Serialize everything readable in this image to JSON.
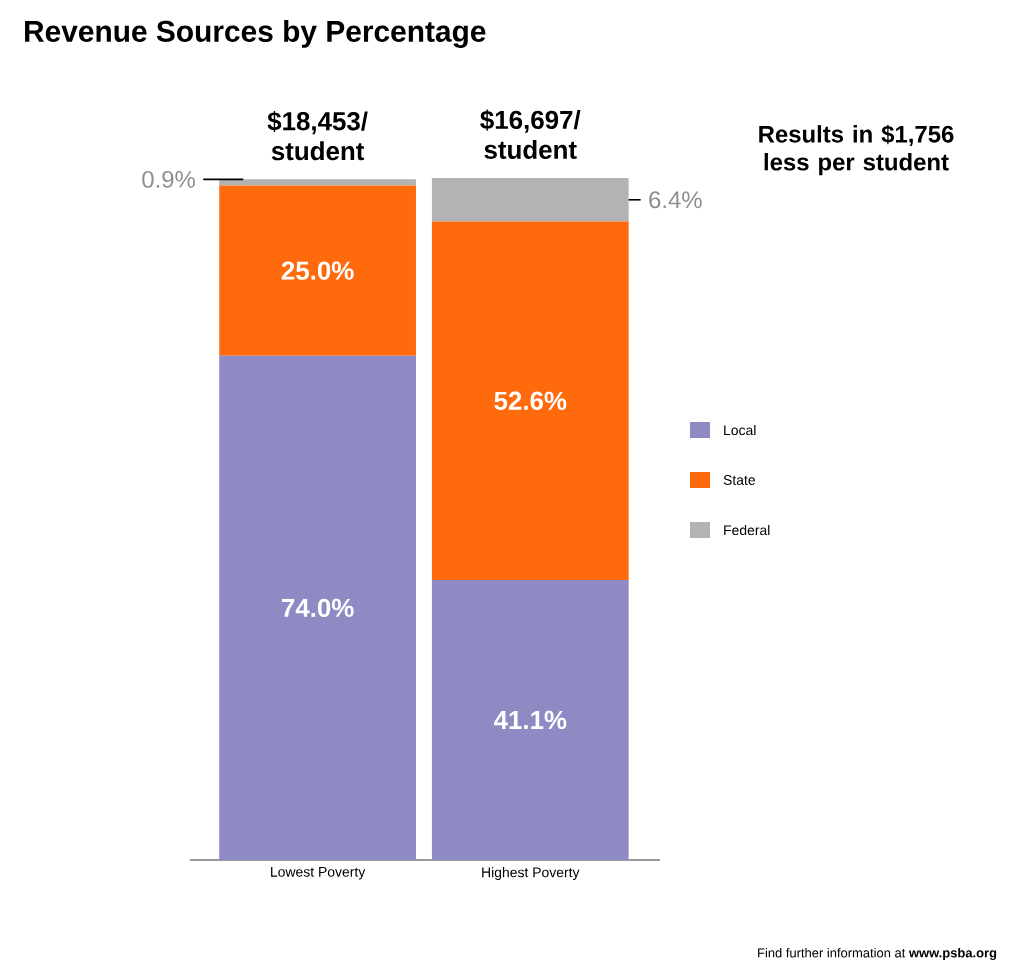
{
  "chart_data": {
    "type": "bar",
    "stacked": true,
    "title": "Revenue Sources by Percentage",
    "categories": [
      "Lowest Poverty",
      "Highest Poverty"
    ],
    "series": [
      {
        "name": "Local",
        "color": "#8e8bc4",
        "values": [
          74.0,
          41.1
        ],
        "value_labels": [
          "74.0%",
          "41.1%"
        ]
      },
      {
        "name": "State",
        "color": "#ff6a0d",
        "values": [
          25.0,
          52.6
        ],
        "value_labels": [
          "25.0%",
          "52.6%"
        ]
      },
      {
        "name": "Federal",
        "color": "#b3b3b3",
        "values": [
          0.9,
          6.4
        ],
        "value_labels": [
          "0.9%",
          "6.4%"
        ]
      }
    ],
    "annotations": [
      "$18,453/ student",
      "$16,697/ student",
      "Results in $1,756 less per student",
      "Find further information at **www.psba.org**"
    ],
    "legend": "right"
  }
}
